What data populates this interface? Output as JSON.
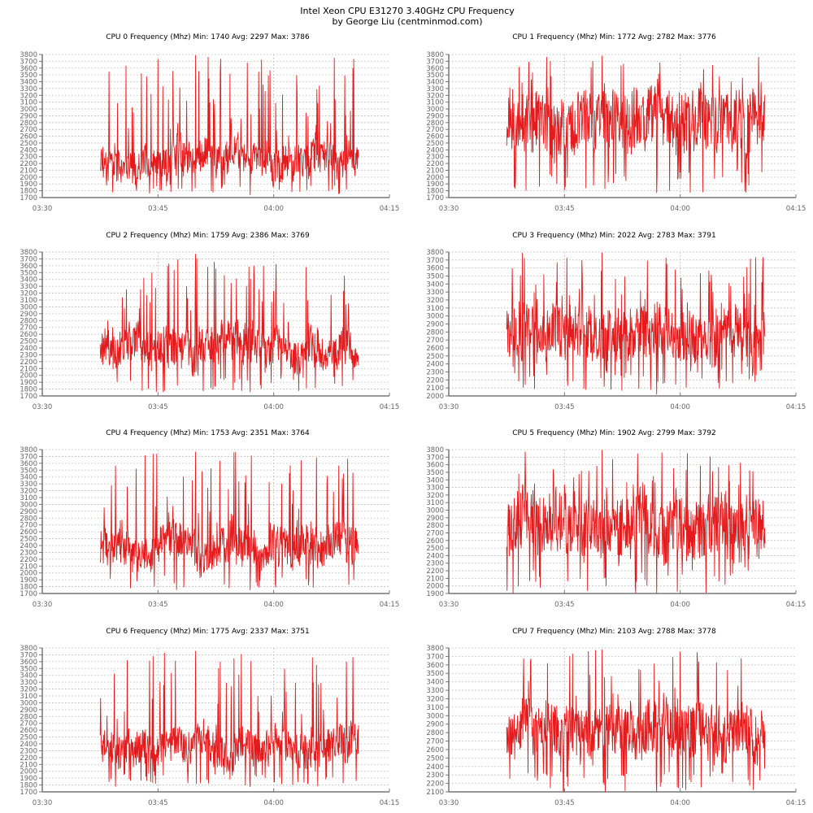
{
  "figure": {
    "title": "Intel Xeon CPU E31270 3.40GHz CPU Frequency",
    "subtitle": "by George Liu (centminmod.com)",
    "line_color": "#e41a1c"
  },
  "chart_data": [
    {
      "type": "line",
      "title": "CPU 0 Frequency (Mhz) Min: 1740   Avg: 2297   Max: 3786",
      "xlabel": "",
      "ylabel": "",
      "x_ticks": [
        "03:30",
        "03:45",
        "04:00",
        "04:15"
      ],
      "xlim": [
        "03:30",
        "04:15"
      ],
      "ylim": [
        1700,
        3800
      ],
      "y_step": 100,
      "grid": true,
      "series": [
        {
          "x_start": "03:37:30",
          "x_end": "04:11:00",
          "min": 1740,
          "avg": 2297,
          "max": 3786
        }
      ]
    },
    {
      "type": "line",
      "title": "CPU 1 Frequency (Mhz) Min: 1772   Avg: 2782   Max: 3776",
      "xlabel": "",
      "ylabel": "",
      "x_ticks": [
        "03:30",
        "03:45",
        "04:00",
        "04:15"
      ],
      "xlim": [
        "03:30",
        "04:15"
      ],
      "ylim": [
        1700,
        3800
      ],
      "y_step": 100,
      "grid": true,
      "series": [
        {
          "x_start": "03:37:30",
          "x_end": "04:11:00",
          "min": 1772,
          "avg": 2782,
          "max": 3776
        }
      ]
    },
    {
      "type": "line",
      "title": "CPU 2 Frequency (Mhz) Min: 1759   Avg: 2386   Max: 3769",
      "xlabel": "",
      "ylabel": "",
      "x_ticks": [
        "03:30",
        "03:45",
        "04:00",
        "04:15"
      ],
      "xlim": [
        "03:30",
        "04:15"
      ],
      "ylim": [
        1700,
        3800
      ],
      "y_step": 100,
      "grid": true,
      "series": [
        {
          "x_start": "03:37:30",
          "x_end": "04:11:00",
          "min": 1759,
          "avg": 2386,
          "max": 3769
        }
      ]
    },
    {
      "type": "line",
      "title": "CPU 3 Frequency (Mhz) Min: 2022   Avg: 2783   Max: 3791",
      "xlabel": "",
      "ylabel": "",
      "x_ticks": [
        "03:30",
        "03:45",
        "04:00",
        "04:15"
      ],
      "xlim": [
        "03:30",
        "04:15"
      ],
      "ylim": [
        2000,
        3800
      ],
      "y_step": 100,
      "grid": true,
      "series": [
        {
          "x_start": "03:37:30",
          "x_end": "04:11:00",
          "min": 2022,
          "avg": 2783,
          "max": 3791
        }
      ]
    },
    {
      "type": "line",
      "title": "CPU 4 Frequency (Mhz) Min: 1753   Avg: 2351   Max: 3764",
      "xlabel": "",
      "ylabel": "",
      "x_ticks": [
        "03:30",
        "03:45",
        "04:00",
        "04:15"
      ],
      "xlim": [
        "03:30",
        "04:15"
      ],
      "ylim": [
        1700,
        3800
      ],
      "y_step": 100,
      "grid": true,
      "series": [
        {
          "x_start": "03:37:30",
          "x_end": "04:11:00",
          "min": 1753,
          "avg": 2351,
          "max": 3764
        }
      ]
    },
    {
      "type": "line",
      "title": "CPU 5 Frequency (Mhz) Min: 1902   Avg: 2799   Max: 3792",
      "xlabel": "",
      "ylabel": "",
      "x_ticks": [
        "03:30",
        "03:45",
        "04:00",
        "04:15"
      ],
      "xlim": [
        "03:30",
        "04:15"
      ],
      "ylim": [
        1900,
        3800
      ],
      "y_step": 100,
      "grid": true,
      "series": [
        {
          "x_start": "03:37:30",
          "x_end": "04:11:00",
          "min": 1902,
          "avg": 2799,
          "max": 3792
        }
      ]
    },
    {
      "type": "line",
      "title": "CPU 6 Frequency (Mhz) Min: 1775   Avg: 2337   Max: 3751",
      "xlabel": "",
      "ylabel": "",
      "x_ticks": [
        "03:30",
        "03:45",
        "04:00",
        "04:15"
      ],
      "xlim": [
        "03:30",
        "04:15"
      ],
      "ylim": [
        1700,
        3800
      ],
      "y_step": 100,
      "grid": true,
      "series": [
        {
          "x_start": "03:37:30",
          "x_end": "04:11:00",
          "min": 1775,
          "avg": 2337,
          "max": 3751
        }
      ]
    },
    {
      "type": "line",
      "title": "CPU 7 Frequency (Mhz) Min: 2103   Avg: 2788   Max: 3778",
      "xlabel": "",
      "ylabel": "",
      "x_ticks": [
        "03:30",
        "03:45",
        "04:00",
        "04:15"
      ],
      "xlim": [
        "03:30",
        "04:15"
      ],
      "ylim": [
        2100,
        3800
      ],
      "y_step": 100,
      "grid": true,
      "series": [
        {
          "x_start": "03:37:30",
          "x_end": "04:11:00",
          "min": 2103,
          "avg": 2788,
          "max": 3778
        }
      ]
    }
  ]
}
